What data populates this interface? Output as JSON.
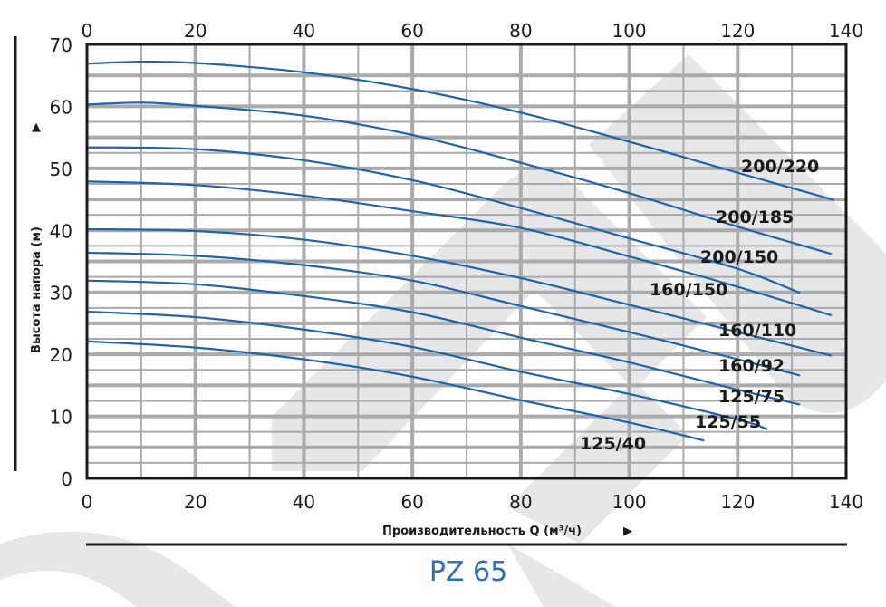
{
  "chart_data": {
    "type": "line",
    "title": "PZ 65",
    "xlabel": "Производительность Q (м³/ч)",
    "ylabel": "Высота напора (м)",
    "xlim": [
      0,
      140
    ],
    "ylim": [
      0,
      70
    ],
    "x_ticks": [
      0,
      20,
      40,
      60,
      80,
      100,
      120,
      140
    ],
    "y_ticks": [
      0,
      10,
      20,
      30,
      40,
      50,
      60,
      70
    ],
    "grid": true,
    "line_color": "#1f64a8",
    "title_color": "#2f6fb7",
    "series": [
      {
        "name": "200/220",
        "x": [
          0,
          10,
          20,
          40,
          60,
          80,
          100,
          120,
          137.8
        ],
        "y": [
          66.9,
          67.2,
          67.0,
          65.5,
          62.8,
          59.0,
          54.3,
          49.3,
          44.9
        ]
      },
      {
        "name": "200/185",
        "x": [
          0,
          10,
          20,
          40,
          60,
          80,
          100,
          120,
          137.3
        ],
        "y": [
          60.3,
          60.6,
          60.1,
          58.5,
          55.4,
          50.9,
          46.0,
          40.6,
          36.2
        ]
      },
      {
        "name": "200/150",
        "x": [
          0,
          20,
          40,
          60,
          80,
          100,
          120,
          131.5
        ],
        "y": [
          53.4,
          53.1,
          51.3,
          48.1,
          43.6,
          38.7,
          33.8,
          29.9
        ]
      },
      {
        "name": "160/150",
        "x": [
          0,
          20,
          40,
          60,
          80,
          100,
          120,
          137.3
        ],
        "y": [
          47.9,
          47.3,
          45.6,
          43.1,
          40.4,
          35.8,
          30.9,
          26.3
        ]
      },
      {
        "name": "160/110",
        "x": [
          0,
          20,
          40,
          60,
          80,
          100,
          120,
          137.3
        ],
        "y": [
          40.2,
          39.9,
          38.5,
          35.9,
          32.3,
          28.0,
          23.6,
          19.8
        ]
      },
      {
        "name": "160/92",
        "x": [
          0,
          20,
          40,
          60,
          80,
          100,
          120,
          131.5
        ],
        "y": [
          36.4,
          35.9,
          34.4,
          31.9,
          27.8,
          23.6,
          19.2,
          16.6
        ]
      },
      {
        "name": "125/75",
        "x": [
          0,
          20,
          40,
          60,
          80,
          100,
          120,
          131.5
        ],
        "y": [
          31.9,
          31.3,
          29.4,
          26.8,
          22.7,
          18.7,
          14.3,
          11.9
        ]
      },
      {
        "name": "125/55",
        "x": [
          0,
          20,
          40,
          60,
          80,
          100,
          120,
          125.5
        ],
        "y": [
          26.9,
          26.0,
          24.0,
          21.2,
          17.2,
          13.6,
          9.5,
          7.9
        ]
      },
      {
        "name": "125/40",
        "x": [
          0,
          20,
          40,
          60,
          80,
          100,
          113.8
        ],
        "y": [
          22.1,
          21.1,
          19.2,
          16.4,
          12.6,
          9.0,
          6.1
        ]
      }
    ]
  },
  "labels": {
    "y_arrow": "▲",
    "x_arrow": "▶"
  }
}
